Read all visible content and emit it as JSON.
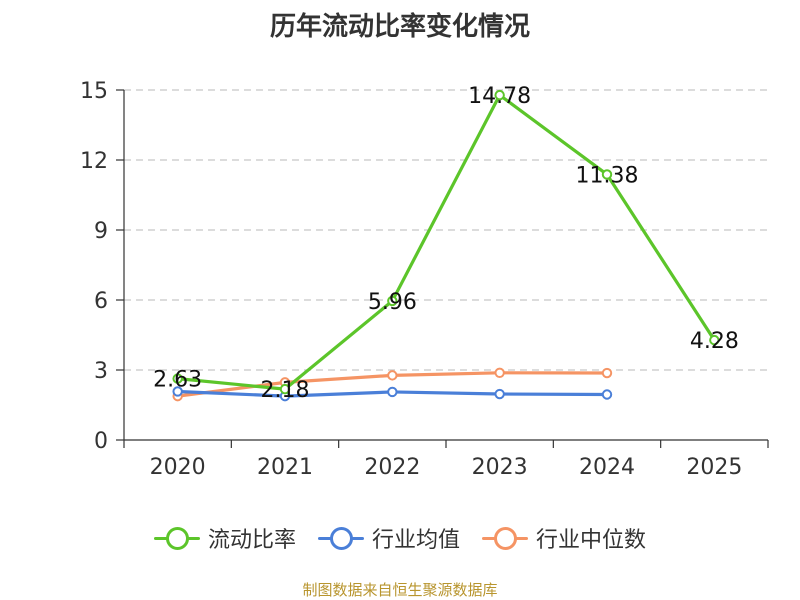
{
  "chart_data": {
    "type": "line",
    "title": "历年流动比率变化情况",
    "categories": [
      "2020",
      "2021",
      "2022",
      "2023",
      "2024",
      "2025"
    ],
    "ylim": [
      0,
      15
    ],
    "yticks": [
      0,
      3,
      6,
      9,
      12,
      15
    ],
    "grid": true,
    "legend_position": "bottom",
    "series": [
      {
        "name": "流动比率",
        "color": "#5cc52a",
        "values": [
          2.63,
          2.18,
          5.96,
          14.78,
          11.38,
          4.28
        ],
        "labels": [
          "2.63",
          "2.18",
          "5.96",
          "14.78",
          "11.38",
          "4.28"
        ]
      },
      {
        "name": "行业均值",
        "color": "#4a7fd8",
        "values": [
          2.08,
          1.88,
          2.06,
          1.97,
          1.95,
          null
        ]
      },
      {
        "name": "行业中位数",
        "color": "#f59464",
        "values": [
          1.88,
          2.47,
          2.77,
          2.88,
          2.87,
          null
        ]
      }
    ]
  },
  "source": "制图数据来自恒生聚源数据库"
}
